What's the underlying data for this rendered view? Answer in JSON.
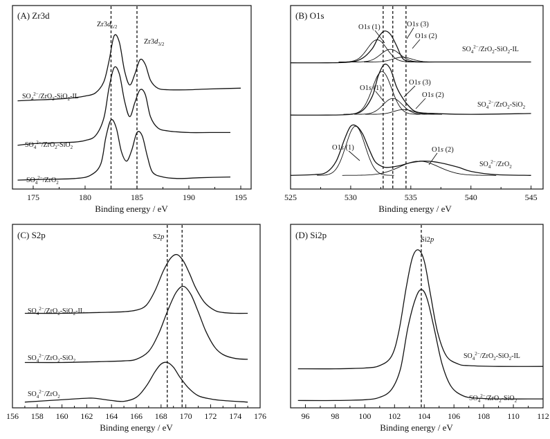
{
  "chart_data": [
    {
      "type": "line",
      "title": "(A) Zr3d",
      "xlabel": "Binding energy / eV",
      "xlim": [
        173,
        196
      ],
      "ylim": [
        0,
        1
      ],
      "xticks": [
        175,
        180,
        185,
        190,
        195
      ],
      "reference_lines": [
        182.5,
        185.0
      ],
      "reference_labels": [
        {
          "text": "Zr3d5/2",
          "x": 181.3,
          "y": 0.92
        },
        {
          "text": "Zr3d3/2",
          "x": 186.5,
          "y": 0.82
        }
      ],
      "series": [
        {
          "name": "SO42−/ZrO2-SiO2-IL",
          "x": [
            173.5,
            175,
            177,
            179,
            180,
            181,
            181.8,
            182.3,
            182.8,
            183.3,
            183.8,
            184.3,
            184.8,
            185.3,
            185.8,
            186.3,
            187,
            188,
            190,
            192,
            195
          ],
          "y": [
            0.53,
            0.535,
            0.54,
            0.55,
            0.56,
            0.58,
            0.65,
            0.78,
            0.94,
            0.9,
            0.72,
            0.63,
            0.7,
            0.79,
            0.76,
            0.66,
            0.61,
            0.6,
            0.6,
            0.605,
            0.61
          ]
        },
        {
          "name": "SO42−/ZrO2-SiO2",
          "x": [
            173.5,
            175,
            177,
            179,
            180,
            181,
            181.8,
            182.3,
            182.8,
            183.3,
            183.8,
            184.3,
            184.8,
            185.3,
            185.8,
            186.3,
            187,
            188,
            190,
            192,
            194
          ],
          "y": [
            0.25,
            0.26,
            0.265,
            0.27,
            0.28,
            0.31,
            0.42,
            0.61,
            0.74,
            0.7,
            0.53,
            0.43,
            0.52,
            0.6,
            0.57,
            0.43,
            0.36,
            0.34,
            0.33,
            0.33,
            0.33
          ]
        },
        {
          "name": "SO42−/ZrO2",
          "x": [
            173.5,
            176,
            179,
            180.5,
            181.5,
            182,
            182.5,
            183,
            183.5,
            184,
            184.5,
            185,
            185.5,
            186,
            186.5,
            187.5,
            189,
            191,
            194
          ],
          "y": [
            0.03,
            0.035,
            0.04,
            0.06,
            0.13,
            0.3,
            0.41,
            0.36,
            0.21,
            0.15,
            0.22,
            0.33,
            0.31,
            0.18,
            0.08,
            0.05,
            0.04,
            0.045,
            0.05
          ]
        }
      ],
      "series_labels": [
        "SO42−/ZrO2-SiO2-IL",
        "SO42−/ZrO2-SiO2",
        "SO42−/ZrO2"
      ]
    },
    {
      "type": "line",
      "title": "(B) O1s",
      "xlabel": "Binding energy / eV",
      "xlim": [
        525,
        546
      ],
      "ylim": [
        0,
        1
      ],
      "xticks": [
        525,
        530,
        535,
        540,
        545
      ],
      "reference_lines": [
        532.7,
        533.5,
        534.6
      ],
      "series": [
        {
          "name": "SO42−/ZrO2-SiO2-IL envelope",
          "x": [
            525,
            528,
            530,
            531,
            531.8,
            532.3,
            532.8,
            533.3,
            533.8,
            534.3,
            534.8,
            535.5,
            537,
            540,
            545
          ],
          "y": [
            0.77,
            0.77,
            0.775,
            0.8,
            0.86,
            0.93,
            0.97,
            0.95,
            0.88,
            0.8,
            0.78,
            0.775,
            0.775,
            0.775,
            0.775
          ]
        },
        {
          "name": "SO42−/ZrO2-SiO2 envelope",
          "x": [
            525,
            528,
            530,
            531,
            531.8,
            532.3,
            532.8,
            533.3,
            533.8,
            534.3,
            534.8,
            535.5,
            537,
            540,
            545
          ],
          "y": [
            0.44,
            0.44,
            0.445,
            0.47,
            0.56,
            0.69,
            0.76,
            0.73,
            0.62,
            0.55,
            0.5,
            0.46,
            0.45,
            0.445,
            0.45
          ]
        },
        {
          "name": "SO42−/ZrO2 envelope",
          "x": [
            525,
            527,
            528,
            528.8,
            529.5,
            530,
            530.5,
            531,
            531.5,
            532,
            532.5,
            533,
            534,
            535,
            536,
            537,
            538,
            539,
            540,
            542,
            545
          ],
          "y": [
            0.06,
            0.065,
            0.08,
            0.15,
            0.29,
            0.37,
            0.37,
            0.32,
            0.23,
            0.15,
            0.12,
            0.11,
            0.12,
            0.14,
            0.15,
            0.145,
            0.13,
            0.11,
            0.085,
            0.065,
            0.06
          ]
        }
      ],
      "components": [
        {
          "name": "O1s (1)",
          "panel": "IL",
          "center": 532.2,
          "amp": 0.14
        },
        {
          "name": "O1s (3)",
          "panel": "IL",
          "center": 533.3,
          "amp": 0.08
        },
        {
          "name": "O1s (2)",
          "panel": "IL",
          "center": 534.3,
          "amp": 0.03
        },
        {
          "name": "O1s (1)",
          "panel": "SiO2",
          "center": 532.6,
          "amp": 0.27
        },
        {
          "name": "O1s (3)",
          "panel": "SiO2",
          "center": 533.5,
          "amp": 0.1
        },
        {
          "name": "O1s (2)",
          "panel": "SiO2",
          "center": 534.4,
          "amp": 0.03
        },
        {
          "name": "O1s (1)",
          "panel": "ZrO2",
          "center": 530.4,
          "amp": 0.31
        },
        {
          "name": "O1s (2)",
          "panel": "ZrO2",
          "center": 535.7,
          "amp": 0.09
        }
      ],
      "component_labels": [
        "O1s (1)",
        "O1s (3)",
        "O1s (2)",
        "O1s (1)",
        "O1s (3)",
        "O1s (2)",
        "O1s (1)",
        "O1s (2)"
      ],
      "series_labels": [
        "SO42−/ZrO2-SiO2-IL",
        "SO42−/ZrO2-SiO2",
        "SO42−/ZrO2"
      ]
    },
    {
      "type": "line",
      "title": "(C) S2p",
      "xlabel": "Binding energy / eV",
      "xlim": [
        156,
        176
      ],
      "ylim": [
        0,
        1
      ],
      "xticks": [
        156,
        158,
        160,
        162,
        164,
        166,
        168,
        170,
        172,
        174,
        176
      ],
      "reference_lines": [
        168.5,
        169.7
      ],
      "reference_labels": [
        {
          "text": "S2p",
          "x": 167.6,
          "y": 0.88
        }
      ],
      "series": [
        {
          "name": "SO42−/ZrO2-SiO2-IL",
          "x": [
            157,
            160,
            163,
            165,
            166,
            166.8,
            167.5,
            168.2,
            168.8,
            169.3,
            169.8,
            170.3,
            170.8,
            171.5,
            172.3,
            173,
            174,
            175
          ],
          "y": [
            0.57,
            0.57,
            0.575,
            0.58,
            0.59,
            0.62,
            0.71,
            0.84,
            0.92,
            0.94,
            0.9,
            0.82,
            0.73,
            0.64,
            0.59,
            0.575,
            0.57,
            0.57
          ]
        },
        {
          "name": "SO42−/ZrO2-SiO2",
          "x": [
            157,
            160,
            163,
            165,
            166,
            167,
            167.8,
            168.5,
            169.2,
            169.8,
            170.4,
            171,
            171.6,
            172.3,
            173,
            174,
            175
          ],
          "y": [
            0.26,
            0.26,
            0.265,
            0.27,
            0.28,
            0.33,
            0.44,
            0.58,
            0.7,
            0.74,
            0.69,
            0.58,
            0.46,
            0.36,
            0.31,
            0.285,
            0.28
          ]
        },
        {
          "name": "SO42−/ZrO2",
          "x": [
            157,
            159,
            161,
            162.5,
            164,
            165,
            166,
            166.8,
            167.5,
            168,
            168.5,
            169,
            169.5,
            170.2,
            171,
            172,
            173,
            175
          ],
          "y": [
            0.01,
            0.02,
            0.03,
            0.035,
            0.02,
            0.015,
            0.04,
            0.11,
            0.2,
            0.25,
            0.26,
            0.23,
            0.17,
            0.1,
            0.05,
            0.03,
            0.02,
            0.01
          ]
        }
      ],
      "series_labels": [
        "SO42−/ZrO2-SiO2-IL",
        "SO42−/ZrO2-SiO2",
        "SO42−/ZrO2"
      ]
    },
    {
      "type": "line",
      "title": "(D) Si2p",
      "xlabel": "Binding energy / eV",
      "xlim": [
        95,
        112
      ],
      "ylim": [
        0,
        1
      ],
      "xticks": [
        96,
        98,
        100,
        102,
        104,
        106,
        108,
        110,
        112
      ],
      "reference_lines": [
        103.8
      ],
      "reference_labels": [
        {
          "text": "Si2p",
          "x": 104.7,
          "y": 0.94
        }
      ],
      "series": [
        {
          "name": "SO42−/ZrO2-SiO2-IL",
          "x": [
            95.5,
            98,
            100,
            101,
            101.8,
            102.3,
            102.8,
            103.2,
            103.6,
            104,
            104.4,
            104.9,
            105.5,
            106.3,
            107,
            109,
            112
          ],
          "y": [
            0.22,
            0.22,
            0.225,
            0.24,
            0.3,
            0.46,
            0.74,
            0.92,
            0.97,
            0.9,
            0.7,
            0.45,
            0.3,
            0.25,
            0.24,
            0.235,
            0.235
          ]
        },
        {
          "name": "SO42−/ZrO2-SiO2",
          "x": [
            95.5,
            98,
            100,
            101,
            101.8,
            102.4,
            102.9,
            103.4,
            103.8,
            104.2,
            104.7,
            105.2,
            105.8,
            106.6,
            107.5,
            109,
            112
          ],
          "y": [
            0.02,
            0.02,
            0.025,
            0.04,
            0.09,
            0.22,
            0.48,
            0.66,
            0.72,
            0.66,
            0.46,
            0.25,
            0.11,
            0.05,
            0.035,
            0.03,
            0.03
          ]
        }
      ],
      "series_labels": [
        "SO42−/ZrO2-SiO2-IL",
        "SO42−/ZrO2-SiO2"
      ]
    }
  ]
}
